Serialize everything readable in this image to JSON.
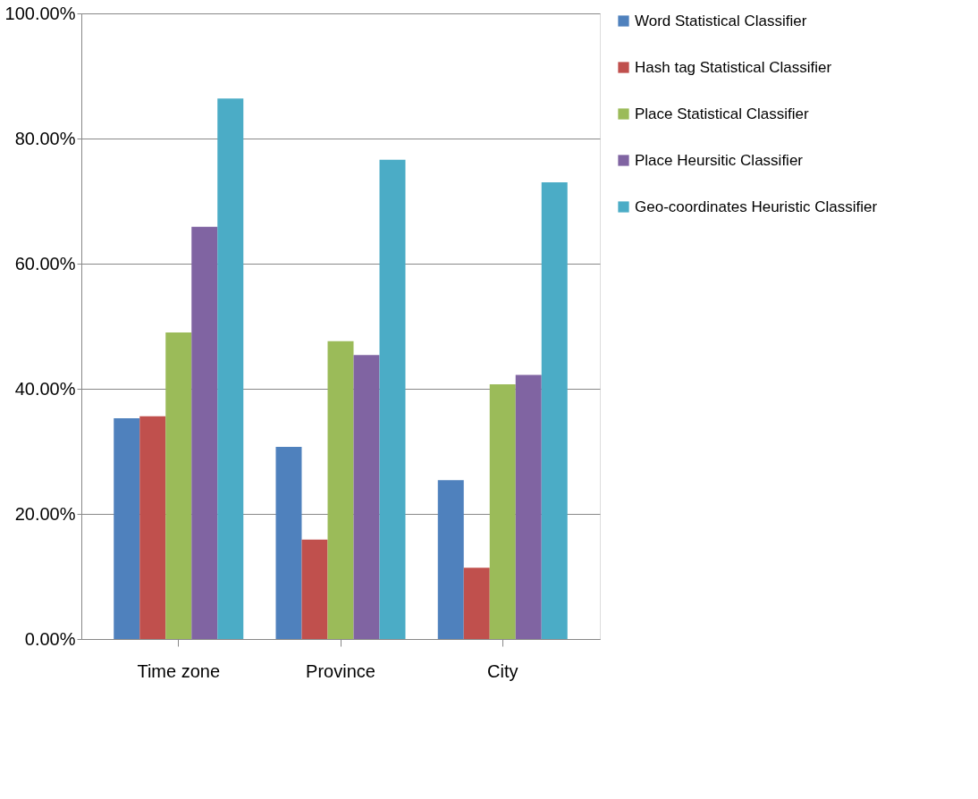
{
  "chart_data": {
    "type": "bar",
    "categories": [
      "Time zone",
      "Province",
      "City"
    ],
    "series": [
      {
        "name": "Word Statistical Classifier",
        "color": "#4f81bd",
        "values": [
          35.3,
          30.7,
          25.4
        ]
      },
      {
        "name": "Hash tag Statistical  Classifier",
        "color": "#c0504d",
        "values": [
          35.6,
          15.9,
          11.4
        ]
      },
      {
        "name": "Place Statistical  Classifier",
        "color": "#9bbb59",
        "values": [
          49.0,
          47.6,
          40.7
        ]
      },
      {
        "name": "Place Heursitic Classifier",
        "color": "#8064a2",
        "values": [
          65.9,
          45.4,
          42.2
        ]
      },
      {
        "name": "Geo-coordinates Heuristic Classifier",
        "color": "#4bacc6",
        "values": [
          86.4,
          76.6,
          73.0
        ]
      }
    ],
    "ylim": [
      0,
      100
    ],
    "yticks": [
      {
        "value": 0,
        "label": "0.00%"
      },
      {
        "value": 20,
        "label": "20.00%"
      },
      {
        "value": 40,
        "label": "40.00%"
      },
      {
        "value": 60,
        "label": "60.00%"
      },
      {
        "value": 80,
        "label": "80.00%"
      },
      {
        "value": 100,
        "label": "100.00%"
      }
    ],
    "grid": "y",
    "legend": "right"
  }
}
